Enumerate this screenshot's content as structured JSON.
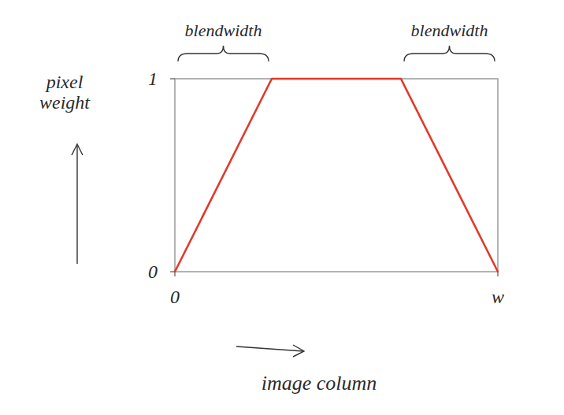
{
  "chart_data": {
    "type": "line",
    "x_label": "image column",
    "y_label": "pixel weight",
    "x": [
      0,
      0.3,
      0.7,
      1
    ],
    "values": [
      0,
      1,
      1,
      0
    ],
    "color": "#e03a2a",
    "xlim": [
      0,
      1
    ],
    "ylim": [
      0,
      1
    ],
    "xticks": [
      0,
      {
        "value": 1,
        "label": "w"
      }
    ],
    "yticks": [
      0,
      1
    ],
    "annotations": [
      "blendwidth",
      "blendwidth"
    ]
  }
}
